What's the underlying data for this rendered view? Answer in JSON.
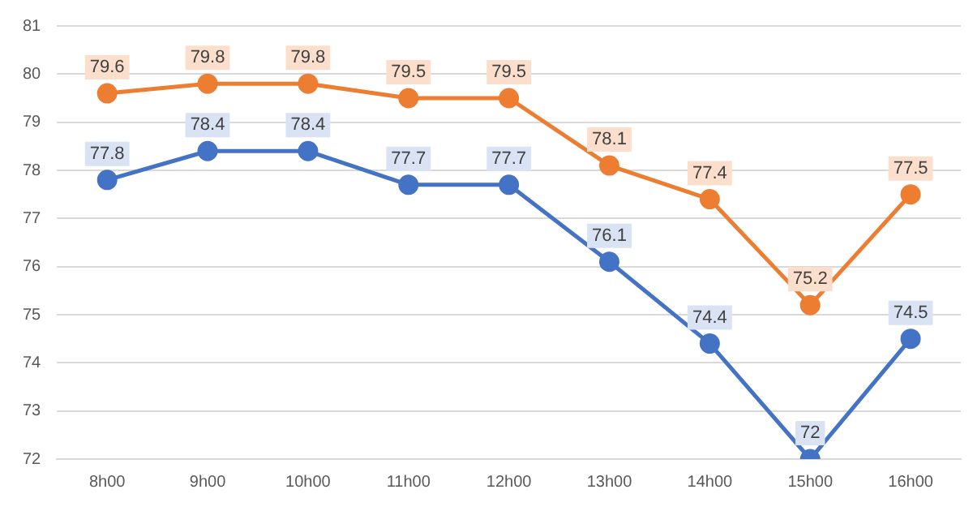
{
  "chart_data": {
    "type": "line",
    "categories": [
      "8h00",
      "9h00",
      "10h00",
      "11h00",
      "12h00",
      "13h00",
      "14h00",
      "15h00",
      "16h00"
    ],
    "series": [
      {
        "color": "#ed7d31",
        "values": [
          79.6,
          79.8,
          79.8,
          79.5,
          79.5,
          78.1,
          77.4,
          75.2,
          77.5
        ]
      },
      {
        "color": "#4472c4",
        "values": [
          77.8,
          78.4,
          78.4,
          77.7,
          77.7,
          76.1,
          74.4,
          72,
          74.5
        ]
      }
    ],
    "ylim": [
      72,
      81
    ],
    "yticks": [
      72,
      73,
      74,
      75,
      76,
      77,
      78,
      79,
      80,
      81
    ],
    "grid": "y",
    "marker": "circle",
    "line_style": "solid",
    "data_labels": true,
    "legend": false
  }
}
